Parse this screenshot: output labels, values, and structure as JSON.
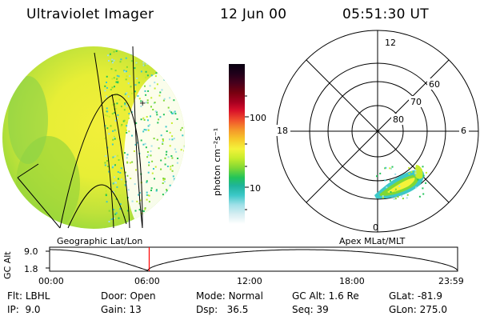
{
  "header": {
    "instrument": "Ultraviolet Imager",
    "date": "12 Jun 00",
    "time": "05:51:30 UT"
  },
  "colorbar": {
    "unit_label": "photon cm⁻²s⁻¹",
    "ticks": [
      "100",
      "10"
    ],
    "colors": [
      "#ffffff",
      "#d7eef2",
      "#9fe0e8",
      "#3cc8c8",
      "#1fb49a",
      "#22c45a",
      "#7fd834",
      "#c6ec2c",
      "#f4f23a",
      "#f6c82a",
      "#f5952a",
      "#f0502c",
      "#d8102a",
      "#a80020",
      "#780010",
      "#48001c",
      "#20001a",
      "#080010"
    ]
  },
  "panels": {
    "left_caption": "Geographic Lat/Lon",
    "right_caption": "Apex MLat/MLT",
    "polar_labels": {
      "mlt_top": "12",
      "mlt_left": "18",
      "mlt_right": "6",
      "mlt_bottom": "0",
      "lat_60": "60",
      "lat_70": "70",
      "lat_80": "80"
    },
    "marker": "+"
  },
  "altitude_plot": {
    "y_title": "GC Alt",
    "y_ticks": [
      "9.0",
      "1.8"
    ],
    "x_ticks": [
      "00:00",
      "06:00",
      "12:00",
      "18:00",
      "23:59"
    ],
    "current_time_marker_color": "#ff0000",
    "current_time_fraction": 0.2441
  },
  "status": {
    "row1": [
      {
        "key": "Flt:",
        "val": "LBHL"
      },
      {
        "key": "Door:",
        "val": "Open"
      },
      {
        "key": "Mode:",
        "val": "Normal"
      },
      {
        "key": "GC Alt:",
        "val": "1.6 Re"
      },
      {
        "key": "GLat:",
        "val": "-81.9"
      }
    ],
    "row2": [
      {
        "key": "IP:",
        "val": "9.0"
      },
      {
        "key": "Gain:",
        "val": "13"
      },
      {
        "key": "Dsp:",
        "val": "36.5"
      },
      {
        "key": "Seq:",
        "val": "39"
      },
      {
        "key": "GLon:",
        "val": "275.0"
      }
    ]
  }
}
